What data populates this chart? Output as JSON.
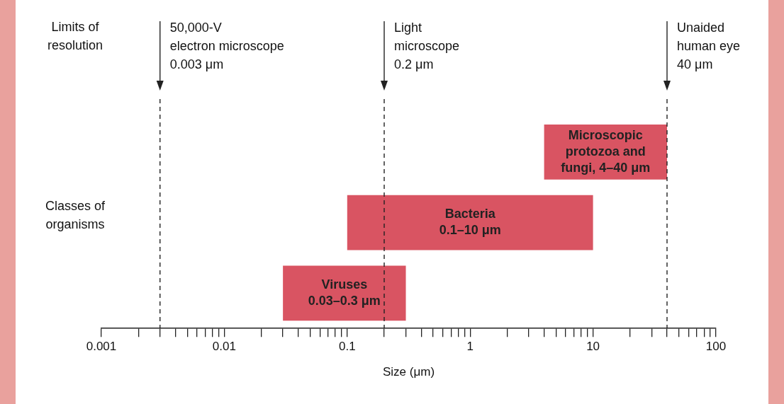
{
  "chart_data": {
    "type": "bar",
    "orientation": "horizontal",
    "log": "x",
    "xlabel": "Size (μm)",
    "categories": [
      null,
      null,
      null
    ],
    "base": [
      4,
      0.1,
      0.03
    ],
    "values": [
      36,
      9.9,
      0.27
    ],
    "color": "#d95462",
    "value_labels": [
      "Microscopic\nprotozoa and\nfungi, 4–40 μm",
      "Bacteria\n0.1–10 μm",
      "Viruses\n0.03–0.3 μm"
    ],
    "xlim": [
      0.001,
      100
    ],
    "xticks": [
      0.001,
      {
        "value": 0.002,
        "label": null
      },
      {
        "value": 0.003,
        "label": null
      },
      {
        "value": 0.004,
        "label": null
      },
      {
        "value": 0.005,
        "label": null
      },
      {
        "value": 0.006,
        "label": null
      },
      {
        "value": 0.007,
        "label": null
      },
      {
        "value": 0.008,
        "label": null
      },
      {
        "value": 0.009,
        "label": null
      },
      0.01,
      {
        "value": 0.02,
        "label": null
      },
      {
        "value": 0.03,
        "label": null
      },
      {
        "value": 0.04,
        "label": null
      },
      {
        "value": 0.05,
        "label": null
      },
      {
        "value": 0.06,
        "label": null
      },
      {
        "value": 0.07,
        "label": null
      },
      {
        "value": 0.08,
        "label": null
      },
      {
        "value": 0.09,
        "label": null
      },
      0.1,
      {
        "value": 0.2,
        "label": null
      },
      {
        "value": 0.3,
        "label": null
      },
      {
        "value": 0.4,
        "label": null
      },
      {
        "value": 0.5,
        "label": null
      },
      {
        "value": 0.6,
        "label": null
      },
      {
        "value": 0.7,
        "label": null
      },
      {
        "value": 0.8,
        "label": null
      },
      {
        "value": 0.9,
        "label": null
      },
      1,
      {
        "value": 2,
        "label": null
      },
      {
        "value": 3,
        "label": null
      },
      {
        "value": 4,
        "label": null
      },
      {
        "value": 5,
        "label": null
      },
      {
        "value": 6,
        "label": null
      },
      {
        "value": 7,
        "label": null
      },
      {
        "value": 8,
        "label": null
      },
      {
        "value": 9,
        "label": null
      },
      10,
      {
        "value": 20,
        "label": null
      },
      {
        "value": 30,
        "label": null
      },
      {
        "value": 40,
        "label": null
      },
      {
        "value": 50,
        "label": null
      },
      {
        "value": 60,
        "label": null
      },
      {
        "value": 70,
        "label": null
      },
      {
        "value": 80,
        "label": null
      },
      {
        "value": 90,
        "label": null
      },
      100
    ],
    "ref_lines": [
      {
        "axis": "x",
        "value": 0.003,
        "label": "50,000-V\nelectron microscope\n0.003 μm",
        "line_style": "dashed"
      },
      {
        "axis": "x",
        "value": 0.2,
        "label": "Light\nmicroscope\n0.2 μm",
        "line_style": "dashed"
      },
      {
        "axis": "x",
        "value": 40,
        "label": "Unaided\nhuman eye\n40 μm",
        "line_style": "dashed"
      }
    ],
    "annotations": [
      "Limits of\nresolution",
      "Classes of\norganisms"
    ],
    "grid": false,
    "legend": false
  }
}
